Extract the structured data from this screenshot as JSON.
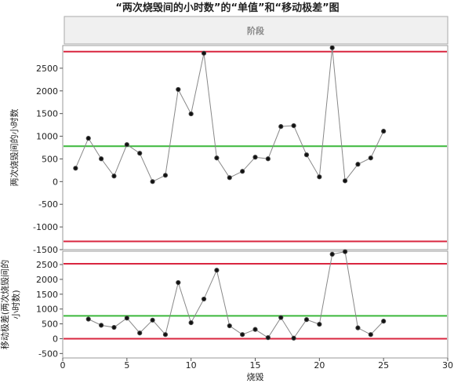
{
  "chart_data": [
    {
      "type": "line",
      "title": "“两次烧毁间的小时数”的“单值”和“移动极差”图",
      "header": "阶段",
      "ylabel": [
        "两次烧毁间的小时数"
      ],
      "x": [
        1,
        2,
        3,
        4,
        5,
        6,
        7,
        8,
        9,
        10,
        11,
        12,
        13,
        14,
        15,
        16,
        17,
        18,
        19,
        20,
        21,
        22,
        23,
        24,
        25
      ],
      "series": [
        {
          "color": "#444444",
          "values": [
            295,
            955,
            503,
            122,
            816,
            625,
            0,
            139,
            2031,
            1493,
            2830,
            521,
            87,
            226,
            538,
            503,
            1215,
            1233,
            590,
            104,
            2951,
            17,
            382,
            521,
            1111
          ]
        }
      ],
      "limits": {
        "ucl": 2865,
        "center": 781,
        "lcl": -1319
      },
      "xlim": [
        0,
        30
      ],
      "ylim": [
        -1500,
        3000
      ],
      "yticks": [
        -1500,
        -1000,
        -500,
        0,
        500,
        1000,
        1500,
        2000,
        2500
      ]
    },
    {
      "type": "line",
      "ylabel": [
        "移动极差(两次烧毁间的",
        "小时数)"
      ],
      "xlabel": "烧毁",
      "x": [
        2,
        3,
        4,
        5,
        6,
        7,
        8,
        9,
        10,
        11,
        12,
        13,
        14,
        15,
        16,
        17,
        18,
        19,
        20,
        21,
        22,
        23,
        24,
        25
      ],
      "series": [
        {
          "color": "#444444",
          "values": [
            660,
            452,
            381,
            694,
            191,
            625,
            139,
            1892,
            538,
            1337,
            2309,
            434,
            139,
            312,
            35,
            712,
            18,
            643,
            486,
            2847,
            2934,
            365,
            139,
            590
          ]
        }
      ],
      "limits": {
        "ucl": 2527,
        "center": 771,
        "lcl": 0
      },
      "xlim": [
        0,
        30
      ],
      "ylim": [
        -650,
        2950
      ],
      "yticks": [
        -500,
        0,
        500,
        1000,
        1500,
        2000,
        2500
      ],
      "xticks": [
        0,
        5,
        10,
        15,
        20,
        25,
        30
      ]
    }
  ]
}
